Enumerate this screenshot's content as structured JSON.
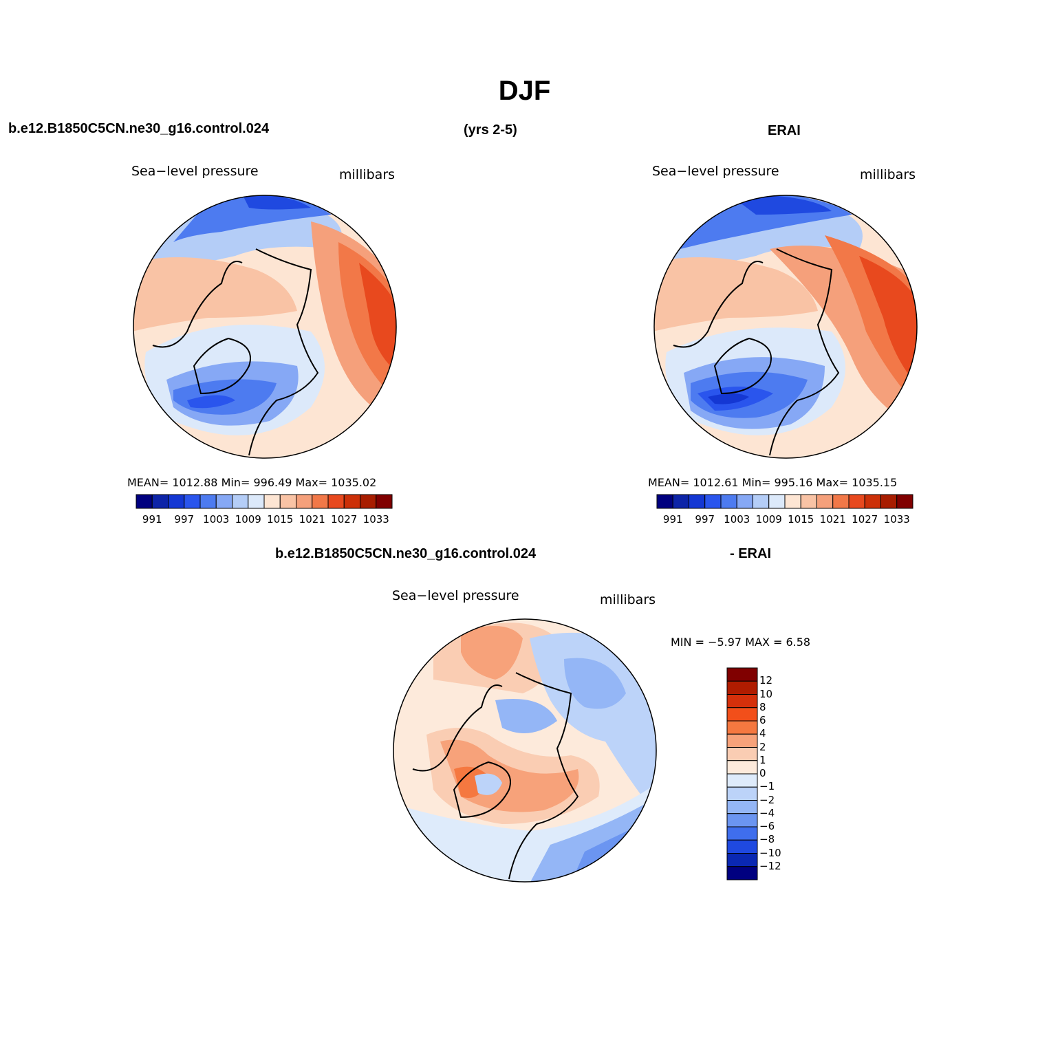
{
  "figure": {
    "title": "DJF",
    "case_name": "b.e12.B1850C5CN.ne30_g16.control.024",
    "years": "(yrs 2-5)",
    "obs_name": "ERAI",
    "diff_case_name": "b.e12.B1850C5CN.ne30_g16.control.024",
    "diff_obs_name": "- ERAI"
  },
  "panels": [
    {
      "variable": "Sea−level pressure",
      "units": "millibars",
      "stats_text": "MEAN=  1012.88    Min=  996.49    Max=  1035.02",
      "mean": 1012.88,
      "min": 996.49,
      "max": 1035.02,
      "colorbar": {
        "colors": [
          "#00007f",
          "#0d24a8",
          "#1437d3",
          "#2a55ed",
          "#4d7bf0",
          "#86a8f5",
          "#b4cdf7",
          "#dce9fa",
          "#fde5d3",
          "#f9c3a5",
          "#f5a07b",
          "#f27848",
          "#e8491e",
          "#cc3008",
          "#a81d00",
          "#800000"
        ],
        "tick_labels": [
          "991",
          "997",
          "1003",
          "1009",
          "1015",
          "1021",
          "1027",
          "1033"
        ]
      }
    },
    {
      "variable": "Sea−level pressure",
      "units": "millibars",
      "stats_text": "MEAN=  1012.61    Min=  995.16    Max=  1035.15",
      "mean": 1012.61,
      "min": 995.16,
      "max": 1035.15,
      "colorbar": {
        "colors": [
          "#00007f",
          "#0d24a8",
          "#1437d3",
          "#2a55ed",
          "#4d7bf0",
          "#86a8f5",
          "#b4cdf7",
          "#dce9fa",
          "#fde5d3",
          "#f9c3a5",
          "#f5a07b",
          "#f27848",
          "#e8491e",
          "#cc3008",
          "#a81d00",
          "#800000"
        ],
        "tick_labels": [
          "991",
          "997",
          "1003",
          "1009",
          "1015",
          "1021",
          "1027",
          "1033"
        ]
      }
    },
    {
      "variable": "Sea−level pressure",
      "units": "millibars",
      "stats_text": "MIN =   −5.97  MAX =     6.58",
      "min": -5.97,
      "max": 6.58,
      "colorbar": {
        "colors": [
          "#800000",
          "#b01c00",
          "#d5300b",
          "#f24f1a",
          "#f57840",
          "#f7a27a",
          "#facdb3",
          "#fdeadb",
          "#deebfb",
          "#bcd3f9",
          "#94b6f6",
          "#6b95f1",
          "#3f6eed",
          "#1f49e0",
          "#0a28b3",
          "#000080"
        ],
        "tick_labels": [
          "12",
          "10",
          "8",
          "6",
          "4",
          "2",
          "1",
          "0",
          "−1",
          "−2",
          "−4",
          "−6",
          "−8",
          "−10",
          "−12"
        ]
      }
    }
  ]
}
